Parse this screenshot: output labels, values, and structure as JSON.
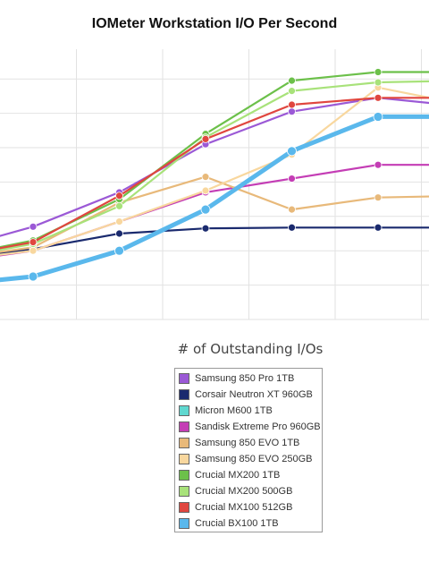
{
  "chart_data": {
    "type": "line",
    "title": "IOMeter Workstation I/O Per Second",
    "xlabel": "# of Outstanding I/Os",
    "ylabel": "",
    "x": [
      1,
      2,
      4,
      8,
      16,
      32,
      64
    ],
    "x_ticks": [
      "2",
      "4",
      "8",
      "16",
      "32"
    ],
    "x_scale": "log2",
    "grid": true,
    "legend_position": "bottom",
    "series": [
      {
        "name": "Samsung 850 Pro 1TB",
        "color": "#9b59d6",
        "values": [
          4.0,
          5.4,
          7.4,
          10.2,
          12.1,
          12.9,
          12.4
        ]
      },
      {
        "name": "Corsair Neutron XT 960GB",
        "color": "#1a2a6e",
        "values": [
          3.5,
          4.1,
          5.0,
          5.3,
          5.35,
          5.35,
          5.35
        ]
      },
      {
        "name": "Micron M600 1TB",
        "color": "#5fd8d0",
        "values": [
          null,
          null,
          null,
          null,
          null,
          null,
          null
        ]
      },
      {
        "name": "Sandisk Extreme Pro 960GB",
        "color": "#c43db5",
        "values": [
          3.3,
          4.0,
          5.7,
          7.4,
          8.2,
          9.0,
          9.0
        ]
      },
      {
        "name": "Samsung 850 EVO 1TB",
        "color": "#e8b97a",
        "values": [
          3.5,
          4.2,
          6.8,
          8.3,
          6.4,
          7.1,
          7.2
        ]
      },
      {
        "name": "Samsung 850 EVO 250GB",
        "color": "#f8d79e",
        "values": [
          3.4,
          4.0,
          5.7,
          7.5,
          9.6,
          13.5,
          12.5
        ]
      },
      {
        "name": "Crucial MX200 1TB",
        "color": "#6cc04a",
        "values": [
          3.6,
          4.6,
          7.0,
          10.8,
          13.9,
          14.4,
          14.4
        ]
      },
      {
        "name": "Crucial MX200 500GB",
        "color": "#a8e27a",
        "values": [
          3.5,
          4.4,
          6.6,
          10.6,
          13.3,
          13.8,
          13.9
        ]
      },
      {
        "name": "Crucial MX100 512GB",
        "color": "#e0463f",
        "values": [
          3.6,
          4.5,
          7.2,
          10.5,
          12.5,
          12.9,
          12.9
        ]
      },
      {
        "name": "Crucial BX100 1TB",
        "color": "#5ab8ec",
        "values": [
          2.0,
          2.5,
          4.0,
          6.4,
          9.8,
          11.8,
          11.8
        ]
      }
    ]
  }
}
